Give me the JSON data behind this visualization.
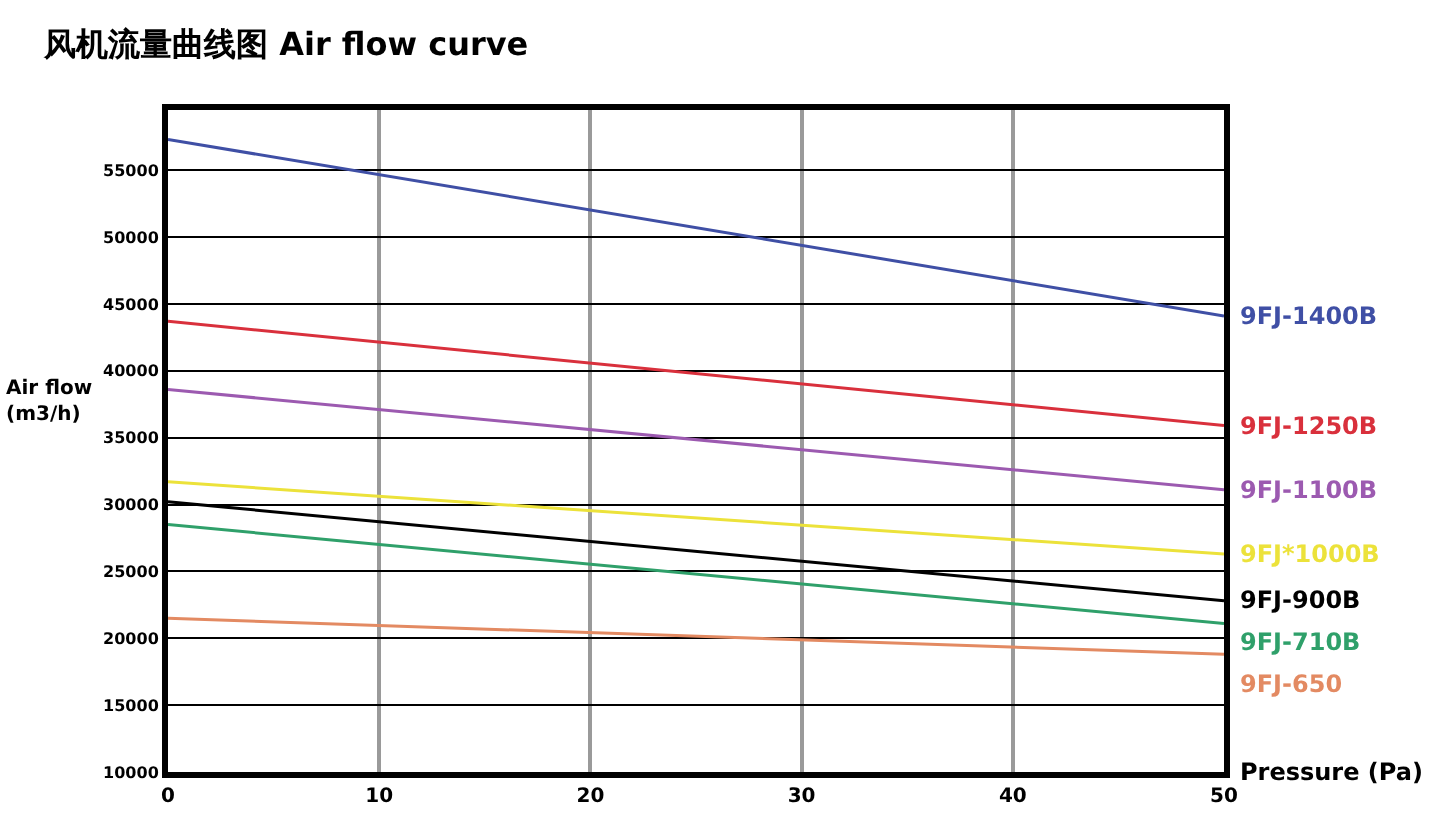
{
  "chart_data": {
    "type": "line",
    "title": "风机流量曲线图 Air flow curve",
    "xlabel": "Pressure (Pa)",
    "ylabel": "Air flow\n(m3/h)",
    "x": [
      0,
      50
    ],
    "xlim": [
      0,
      50
    ],
    "xticks": [
      0,
      10,
      20,
      30,
      40,
      50
    ],
    "ylim": [
      10000,
      59500
    ],
    "yticks": [
      10000,
      15000,
      20000,
      25000,
      30000,
      35000,
      40000,
      45000,
      50000,
      55000
    ],
    "grid": true,
    "legend": false,
    "marker": "none",
    "line_style": "solid",
    "series": [
      {
        "name": "9FJ-1400B",
        "color": "#3f4fa5",
        "values": [
          57300,
          44100
        ]
      },
      {
        "name": "9FJ-1250B",
        "color": "#d9303c",
        "values": [
          43700,
          35900
        ]
      },
      {
        "name": "9FJ-1100B",
        "color": "#9c5ab0",
        "values": [
          38600,
          31100
        ]
      },
      {
        "name": "9FJ*1000B",
        "color": "#ece23a",
        "values": [
          31700,
          26300
        ]
      },
      {
        "name": "9FJ-900B",
        "color": "#000000",
        "values": [
          30200,
          22800
        ]
      },
      {
        "name": "9FJ-710B",
        "color": "#2fa06a",
        "values": [
          28500,
          21100
        ]
      },
      {
        "name": "9FJ-650",
        "color": "#e38a62",
        "values": [
          21500,
          18800
        ]
      }
    ]
  }
}
